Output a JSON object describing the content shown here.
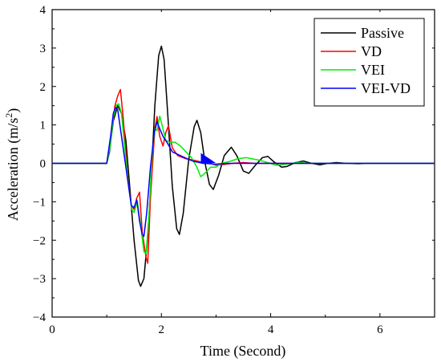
{
  "chart_data": {
    "type": "line",
    "xlabel": "Time (Second)",
    "ylabel_main": "Acceleration (m/s",
    "ylabel_sup": "2",
    "ylabel_close": ")",
    "xlim": [
      0,
      7
    ],
    "ylim": [
      -4,
      4
    ],
    "xticks": [
      0,
      2,
      4,
      6
    ],
    "xtick_labels": [
      "0",
      "2",
      "4",
      "6"
    ],
    "yticks": [
      -4,
      -3,
      -2,
      -1,
      0,
      1,
      2,
      3,
      4
    ],
    "ytick_labels": [
      "−4",
      "−3",
      "−2",
      "−1",
      "0",
      "1",
      "2",
      "3",
      "4"
    ],
    "grid": false,
    "legend_position": "top-right",
    "series": [
      {
        "name": "Passive",
        "color": "#000000",
        "points": [
          [
            0,
            0
          ],
          [
            1.0,
            0
          ],
          [
            1.05,
            0.3
          ],
          [
            1.12,
            1.1
          ],
          [
            1.2,
            1.5
          ],
          [
            1.27,
            1.3
          ],
          [
            1.35,
            0.6
          ],
          [
            1.42,
            -0.6
          ],
          [
            1.5,
            -2.0
          ],
          [
            1.58,
            -3.05
          ],
          [
            1.62,
            -3.2
          ],
          [
            1.68,
            -3.0
          ],
          [
            1.75,
            -1.9
          ],
          [
            1.82,
            -0.2
          ],
          [
            1.88,
            1.5
          ],
          [
            1.95,
            2.8
          ],
          [
            2.0,
            3.05
          ],
          [
            2.05,
            2.7
          ],
          [
            2.12,
            1.2
          ],
          [
            2.2,
            -0.6
          ],
          [
            2.28,
            -1.7
          ],
          [
            2.33,
            -1.85
          ],
          [
            2.4,
            -1.3
          ],
          [
            2.5,
            0.1
          ],
          [
            2.6,
            0.95
          ],
          [
            2.65,
            1.12
          ],
          [
            2.72,
            0.8
          ],
          [
            2.8,
            0.0
          ],
          [
            2.88,
            -0.55
          ],
          [
            2.95,
            -0.68
          ],
          [
            3.05,
            -0.3
          ],
          [
            3.15,
            0.2
          ],
          [
            3.28,
            0.42
          ],
          [
            3.38,
            0.2
          ],
          [
            3.5,
            -0.2
          ],
          [
            3.6,
            -0.26
          ],
          [
            3.72,
            -0.05
          ],
          [
            3.85,
            0.15
          ],
          [
            3.95,
            0.18
          ],
          [
            4.05,
            0.05
          ],
          [
            4.2,
            -0.1
          ],
          [
            4.3,
            -0.08
          ],
          [
            4.45,
            0.02
          ],
          [
            4.6,
            0.06
          ],
          [
            4.75,
            0.0
          ],
          [
            4.9,
            -0.04
          ],
          [
            5.05,
            0.0
          ],
          [
            5.2,
            0.02
          ],
          [
            5.4,
            0.0
          ],
          [
            5.6,
            -0.01
          ],
          [
            5.8,
            0.0
          ],
          [
            7.0,
            0.0
          ]
        ]
      },
      {
        "name": "VD",
        "color": "#ff0000",
        "points": [
          [
            0,
            0
          ],
          [
            1.0,
            0
          ],
          [
            1.07,
            0.6
          ],
          [
            1.15,
            1.5
          ],
          [
            1.2,
            1.75
          ],
          [
            1.25,
            1.92
          ],
          [
            1.3,
            1.2
          ],
          [
            1.38,
            -0.3
          ],
          [
            1.45,
            -1.1
          ],
          [
            1.5,
            -1.2
          ],
          [
            1.55,
            -0.9
          ],
          [
            1.6,
            -0.75
          ],
          [
            1.65,
            -1.8
          ],
          [
            1.72,
            -2.45
          ],
          [
            1.75,
            -2.6
          ],
          [
            1.8,
            -0.9
          ],
          [
            1.88,
            0.9
          ],
          [
            1.92,
            1.22
          ],
          [
            1.97,
            0.7
          ],
          [
            2.03,
            0.45
          ],
          [
            2.08,
            0.8
          ],
          [
            2.13,
            0.98
          ],
          [
            2.2,
            0.4
          ],
          [
            2.3,
            0.2
          ],
          [
            2.45,
            0.12
          ],
          [
            2.6,
            0.08
          ],
          [
            2.75,
            0.03
          ],
          [
            2.9,
            0.0
          ],
          [
            3.0,
            -0.05
          ],
          [
            3.15,
            -0.03
          ],
          [
            3.3,
            0.0
          ],
          [
            3.5,
            0.02
          ],
          [
            3.7,
            0.0
          ],
          [
            4.0,
            0.0
          ],
          [
            7.0,
            0.0
          ]
        ]
      },
      {
        "name": "VEI",
        "color": "#00ee00",
        "points": [
          [
            0,
            0
          ],
          [
            1.0,
            0
          ],
          [
            1.07,
            0.5
          ],
          [
            1.12,
            1.2
          ],
          [
            1.18,
            1.52
          ],
          [
            1.22,
            1.55
          ],
          [
            1.27,
            1.3
          ],
          [
            1.33,
            0.4
          ],
          [
            1.4,
            -0.6
          ],
          [
            1.46,
            -1.2
          ],
          [
            1.5,
            -1.28
          ],
          [
            1.56,
            -1.0
          ],
          [
            1.62,
            -1.6
          ],
          [
            1.68,
            -2.3
          ],
          [
            1.72,
            -2.35
          ],
          [
            1.77,
            -1.4
          ],
          [
            1.83,
            0.2
          ],
          [
            1.88,
            0.9
          ],
          [
            1.92,
            0.85
          ],
          [
            1.97,
            1.23
          ],
          [
            2.02,
            0.95
          ],
          [
            2.08,
            0.6
          ],
          [
            2.15,
            0.55
          ],
          [
            2.25,
            0.55
          ],
          [
            2.35,
            0.45
          ],
          [
            2.45,
            0.3
          ],
          [
            2.55,
            0.15
          ],
          [
            2.65,
            -0.1
          ],
          [
            2.72,
            -0.35
          ],
          [
            2.8,
            -0.25
          ],
          [
            2.9,
            -0.1
          ],
          [
            3.0,
            -0.1
          ],
          [
            3.1,
            0.0
          ],
          [
            3.25,
            0.05
          ],
          [
            3.4,
            0.12
          ],
          [
            3.55,
            0.15
          ],
          [
            3.65,
            0.12
          ],
          [
            3.8,
            0.08
          ],
          [
            3.95,
            0.02
          ],
          [
            4.1,
            -0.05
          ],
          [
            4.3,
            -0.02
          ],
          [
            4.5,
            0.03
          ],
          [
            4.7,
            0.0
          ],
          [
            5.0,
            0.0
          ],
          [
            7.0,
            0.0
          ]
        ]
      },
      {
        "name": "VEI-VD",
        "color": "#0000ff",
        "points": [
          [
            0,
            0
          ],
          [
            1.0,
            0
          ],
          [
            1.07,
            0.7
          ],
          [
            1.12,
            1.3
          ],
          [
            1.16,
            1.45
          ],
          [
            1.2,
            1.4
          ],
          [
            1.25,
            0.9
          ],
          [
            1.32,
            0.2
          ],
          [
            1.4,
            -0.6
          ],
          [
            1.45,
            -1.1
          ],
          [
            1.5,
            -1.15
          ],
          [
            1.55,
            -0.95
          ],
          [
            1.6,
            -1.5
          ],
          [
            1.65,
            -1.85
          ],
          [
            1.68,
            -1.9
          ],
          [
            1.73,
            -1.3
          ],
          [
            1.8,
            -0.1
          ],
          [
            1.87,
            0.8
          ],
          [
            1.92,
            1.08
          ],
          [
            1.97,
            0.9
          ],
          [
            2.03,
            0.7
          ],
          [
            2.1,
            0.55
          ],
          [
            2.2,
            0.3
          ],
          [
            2.35,
            0.2
          ],
          [
            2.5,
            0.1
          ],
          [
            2.6,
            0.05
          ],
          [
            2.7,
            0.02
          ],
          [
            2.76,
            0.0
          ],
          [
            3.0,
            -0.02
          ],
          [
            3.2,
            0.0
          ],
          [
            4.0,
            0.0
          ],
          [
            7.0,
            0.0
          ]
        ]
      }
    ],
    "annotation_marker": {
      "color": "#0000ff",
      "points": [
        [
          2.73,
          0.25
        ],
        [
          2.73,
          0.02
        ],
        [
          2.97,
          0.02
        ]
      ]
    }
  }
}
